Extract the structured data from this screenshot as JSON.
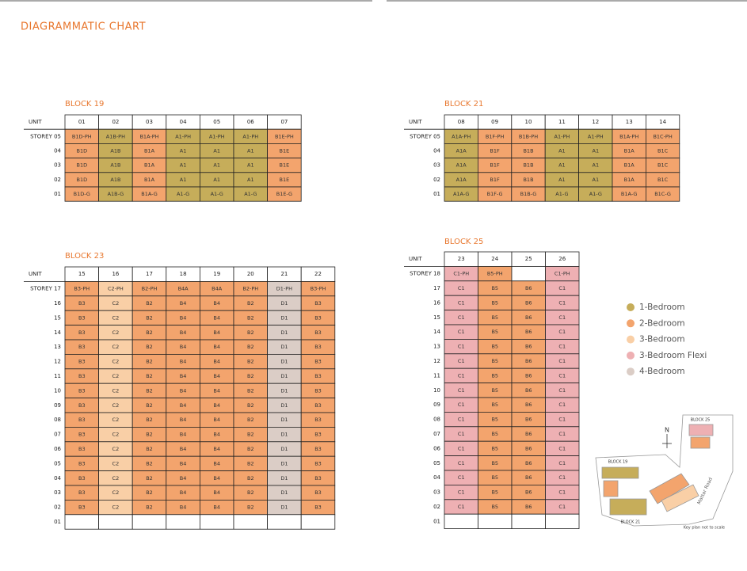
{
  "header": {
    "title": "DIAGRAMMATIC CHART"
  },
  "legend": [
    {
      "label": "1-Bedroom",
      "color": "#c6ad5a"
    },
    {
      "label": "2-Bedroom",
      "color": "#f3a46d"
    },
    {
      "label": "3-Bedroom",
      "color": "#f9cfa6"
    },
    {
      "label": "3-Bedroom Flexi",
      "color": "#eeb0b3"
    },
    {
      "label": "4-Bedroom",
      "color": "#dbcdc6"
    }
  ],
  "blocks": [
    {
      "title": "BLOCK 19",
      "unit_label": "UNIT",
      "units": [
        "01",
        "02",
        "03",
        "04",
        "05",
        "06",
        "07"
      ],
      "column_colors": [
        "#f3a46d",
        "#c6ad5a",
        "#f3a46d",
        "#c6ad5a",
        "#c6ad5a",
        "#c6ad5a",
        "#f3a46d"
      ],
      "rows": [
        {
          "label": "STOREY 05",
          "cells": [
            "B1D-PH",
            "A1B-PH",
            "B1A-PH",
            "A1-PH",
            "A1-PH",
            "A1-PH",
            "B1E-PH"
          ]
        },
        {
          "label": "04",
          "cells": [
            "B1D",
            "A1B",
            "B1A",
            "A1",
            "A1",
            "A1",
            "B1E"
          ]
        },
        {
          "label": "03",
          "cells": [
            "B1D",
            "A1B",
            "B1A",
            "A1",
            "A1",
            "A1",
            "B1E"
          ]
        },
        {
          "label": "02",
          "cells": [
            "B1D",
            "A1B",
            "B1A",
            "A1",
            "A1",
            "A1",
            "B1E"
          ]
        },
        {
          "label": "01",
          "cells": [
            "B1D-G",
            "A1B-G",
            "B1A-G",
            "A1-G",
            "A1-G",
            "A1-G",
            "B1E-G"
          ]
        }
      ]
    },
    {
      "title": "BLOCK 21",
      "unit_label": "UNIT",
      "units": [
        "08",
        "09",
        "10",
        "11",
        "12",
        "13",
        "14"
      ],
      "column_colors": [
        "#c6ad5a",
        "#f3a46d",
        "#f3a46d",
        "#c6ad5a",
        "#c6ad5a",
        "#f3a46d",
        "#f3a46d"
      ],
      "rows": [
        {
          "label": "STOREY 05",
          "cells": [
            "A1A-PH",
            "B1F-PH",
            "B1B-PH",
            "A1-PH",
            "A1-PH",
            "B1A-PH",
            "B1C-PH"
          ]
        },
        {
          "label": "04",
          "cells": [
            "A1A",
            "B1F",
            "B1B",
            "A1",
            "A1",
            "B1A",
            "B1C"
          ]
        },
        {
          "label": "03",
          "cells": [
            "A1A",
            "B1F",
            "B1B",
            "A1",
            "A1",
            "B1A",
            "B1C"
          ]
        },
        {
          "label": "02",
          "cells": [
            "A1A",
            "B1F",
            "B1B",
            "A1",
            "A1",
            "B1A",
            "B1C"
          ]
        },
        {
          "label": "01",
          "cells": [
            "A1A-G",
            "B1F-G",
            "B1B-G",
            "A1-G",
            "A1-G",
            "B1A-G",
            "B1C-G"
          ]
        }
      ]
    },
    {
      "title": "BLOCK 23",
      "unit_label": "UNIT",
      "units": [
        "15",
        "16",
        "17",
        "18",
        "19",
        "20",
        "21",
        "22"
      ],
      "column_colors": [
        "#f3a46d",
        "#f9cfa6",
        "#f3a46d",
        "#f3a46d",
        "#f3a46d",
        "#f3a46d",
        "#dbcdc6",
        "#f3a46d"
      ],
      "rows": [
        {
          "label": "STOREY 17",
          "cells": [
            "B3-PH",
            "C2-PH",
            "B2-PH",
            "B4A",
            "B4A",
            "B2-PH",
            "D1-PH",
            "B3-PH"
          ]
        },
        {
          "label": "16",
          "cells": [
            "B3",
            "C2",
            "B2",
            "B4",
            "B4",
            "B2",
            "D1",
            "B3"
          ]
        },
        {
          "label": "15",
          "cells": [
            "B3",
            "C2",
            "B2",
            "B4",
            "B4",
            "B2",
            "D1",
            "B3"
          ]
        },
        {
          "label": "14",
          "cells": [
            "B3",
            "C2",
            "B2",
            "B4",
            "B4",
            "B2",
            "D1",
            "B3"
          ]
        },
        {
          "label": "13",
          "cells": [
            "B3",
            "C2",
            "B2",
            "B4",
            "B4",
            "B2",
            "D1",
            "B3"
          ]
        },
        {
          "label": "12",
          "cells": [
            "B3",
            "C2",
            "B2",
            "B4",
            "B4",
            "B2",
            "D1",
            "B3"
          ]
        },
        {
          "label": "11",
          "cells": [
            "B3",
            "C2",
            "B2",
            "B4",
            "B4",
            "B2",
            "D1",
            "B3"
          ]
        },
        {
          "label": "10",
          "cells": [
            "B3",
            "C2",
            "B2",
            "B4",
            "B4",
            "B2",
            "D1",
            "B3"
          ]
        },
        {
          "label": "09",
          "cells": [
            "B3",
            "C2",
            "B2",
            "B4",
            "B4",
            "B2",
            "D1",
            "B3"
          ]
        },
        {
          "label": "08",
          "cells": [
            "B3",
            "C2",
            "B2",
            "B4",
            "B4",
            "B2",
            "D1",
            "B3"
          ]
        },
        {
          "label": "07",
          "cells": [
            "B3",
            "C2",
            "B2",
            "B4",
            "B4",
            "B2",
            "D1",
            "B3"
          ]
        },
        {
          "label": "06",
          "cells": [
            "B3",
            "C2",
            "B2",
            "B4",
            "B4",
            "B2",
            "D1",
            "B3"
          ]
        },
        {
          "label": "05",
          "cells": [
            "B3",
            "C2",
            "B2",
            "B4",
            "B4",
            "B2",
            "D1",
            "B3"
          ]
        },
        {
          "label": "04",
          "cells": [
            "B3",
            "C2",
            "B2",
            "B4",
            "B4",
            "B2",
            "D1",
            "B3"
          ]
        },
        {
          "label": "03",
          "cells": [
            "B3",
            "C2",
            "B2",
            "B4",
            "B4",
            "B2",
            "D1",
            "B3"
          ]
        },
        {
          "label": "02",
          "cells": [
            "B3",
            "C2",
            "B2",
            "B4",
            "B4",
            "B2",
            "D1",
            "B3"
          ]
        },
        {
          "label": "01",
          "cells": [
            null,
            null,
            null,
            null,
            null,
            null,
            null,
            null
          ]
        }
      ]
    },
    {
      "title": "BLOCK 25",
      "unit_label": "UNIT",
      "units": [
        "23",
        "24",
        "25",
        "26"
      ],
      "column_colors": [
        "#eeb0b3",
        "#f3a46d",
        "#f3a46d",
        "#eeb0b3"
      ],
      "rows": [
        {
          "label": "STOREY 18",
          "cells": [
            "C1-PH",
            "B5-PH",
            null,
            "C1-PH"
          ]
        },
        {
          "label": "17",
          "cells": [
            "C1",
            "B5",
            "B6",
            "C1"
          ]
        },
        {
          "label": "16",
          "cells": [
            "C1",
            "B5",
            "B6",
            "C1"
          ]
        },
        {
          "label": "15",
          "cells": [
            "C1",
            "B5",
            "B6",
            "C1"
          ]
        },
        {
          "label": "14",
          "cells": [
            "C1",
            "B5",
            "B6",
            "C1"
          ]
        },
        {
          "label": "13",
          "cells": [
            "C1",
            "B5",
            "B6",
            "C1"
          ]
        },
        {
          "label": "12",
          "cells": [
            "C1",
            "B5",
            "B6",
            "C1"
          ]
        },
        {
          "label": "11",
          "cells": [
            "C1",
            "B5",
            "B6",
            "C1"
          ]
        },
        {
          "label": "10",
          "cells": [
            "C1",
            "B5",
            "B6",
            "C1"
          ]
        },
        {
          "label": "09",
          "cells": [
            "C1",
            "B5",
            "B6",
            "C1"
          ]
        },
        {
          "label": "08",
          "cells": [
            "C1",
            "B5",
            "B6",
            "C1"
          ]
        },
        {
          "label": "07",
          "cells": [
            "C1",
            "B5",
            "B6",
            "C1"
          ]
        },
        {
          "label": "06",
          "cells": [
            "C1",
            "B5",
            "B6",
            "C1"
          ]
        },
        {
          "label": "05",
          "cells": [
            "C1",
            "B5",
            "B6",
            "C1"
          ]
        },
        {
          "label": "04",
          "cells": [
            "C1",
            "B5",
            "B6",
            "C1"
          ]
        },
        {
          "label": "03",
          "cells": [
            "C1",
            "B5",
            "B6",
            "C1"
          ]
        },
        {
          "label": "02",
          "cells": [
            "C1",
            "B5",
            "B6",
            "C1"
          ]
        },
        {
          "label": "01",
          "cells": [
            null,
            null,
            null,
            null
          ]
        }
      ]
    }
  ],
  "key_plan": {
    "north": "N",
    "block_25": "BLOCK 25",
    "block_19": "BLOCK 19",
    "block_21": "BLOCK 21",
    "road": "Mattar Road",
    "note": "Key plan not to scale"
  }
}
